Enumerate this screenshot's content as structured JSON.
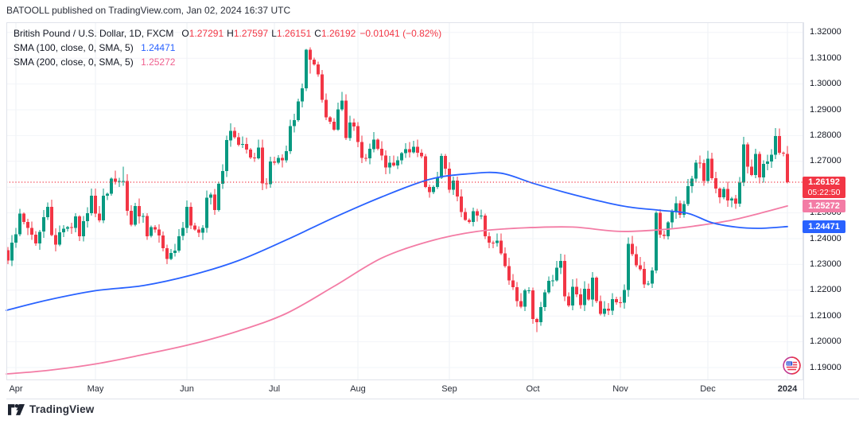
{
  "header": {
    "published": "BATOOLL published on TradingView.com, Jan 02, 2024 16:37 UTC"
  },
  "legend": {
    "symbol": "British Pound / U.S. Dollar, 1D, FXCM",
    "ohlc_segments": [
      [
        "O",
        "1.27291"
      ],
      [
        "H",
        "1.27597"
      ],
      [
        "L",
        "1.26151"
      ],
      [
        "C",
        "1.26192"
      ]
    ],
    "change_text": "−0.01041 (−0.82%)",
    "sma100": {
      "label": "SMA (100, close, 0, SMA, 5)",
      "value": "1.24471"
    },
    "sma200": {
      "label": "SMA (200, close, 0, SMA, 5)",
      "value": "1.25272"
    }
  },
  "price_axis": {
    "ticks": [
      {
        "text": "1.32000",
        "price": 1.32
      },
      {
        "text": "1.31000",
        "price": 1.31
      },
      {
        "text": "1.30000",
        "price": 1.3
      },
      {
        "text": "1.29000",
        "price": 1.29
      },
      {
        "text": "1.28000",
        "price": 1.28
      },
      {
        "text": "1.27000",
        "price": 1.27
      },
      {
        "text": "1.26000",
        "price": 1.26
      },
      {
        "text": "1.25000",
        "price": 1.25
      },
      {
        "text": "1.24000",
        "price": 1.24
      },
      {
        "text": "1.23000",
        "price": 1.23
      },
      {
        "text": "1.22000",
        "price": 1.22
      },
      {
        "text": "1.21000",
        "price": 1.21
      },
      {
        "text": "1.20000",
        "price": 1.2
      },
      {
        "text": "1.19000",
        "price": 1.19
      }
    ],
    "last_tag": {
      "price_text": "1.26192",
      "countdown": "05:22:50"
    },
    "sma200_tag": "1.25272",
    "sma100_tag": "1.24471"
  },
  "time_axis": {
    "months": [
      {
        "text": "Apr",
        "index": 2
      },
      {
        "text": "May",
        "index": 22
      },
      {
        "text": "Jun",
        "index": 45
      },
      {
        "text": "Jul",
        "index": 67
      },
      {
        "text": "Aug",
        "index": 88
      },
      {
        "text": "Sep",
        "index": 111
      },
      {
        "text": "Oct",
        "index": 132
      },
      {
        "text": "Nov",
        "index": 154
      },
      {
        "text": "Dec",
        "index": 176
      },
      {
        "text": "2024",
        "index": 196,
        "bold": true
      }
    ]
  },
  "footer": {
    "brand": "TradingView"
  },
  "colors": {
    "up": "#089981",
    "down": "#f23645",
    "sma100": "#2962ff",
    "sma200": "#f37ca5",
    "last_price": "#f23645",
    "grid_v": "#edf0f4",
    "grid_h": "#f2f4f8",
    "border": "#e0e3eb"
  },
  "chart_data": {
    "type": "candlestick",
    "title": "British Pound / U.S. Dollar, 1D, FXCM",
    "symbol": "GBPUSD",
    "timeframe": "1D",
    "exchange": "FXCM",
    "last_bar": {
      "open": 1.27291,
      "high": 1.27597,
      "low": 1.26151,
      "close": 1.26192,
      "change": -0.01041,
      "change_pct": -0.82
    },
    "y_axis": {
      "min": 1.19,
      "max": 1.32,
      "step": 0.01
    },
    "x_range": "Apr 2023 – Jan 2024",
    "last_price_line": 1.26192,
    "closes": [
      1.2315,
      1.2385,
      1.2417,
      1.2497,
      1.2465,
      1.2442,
      1.2415,
      1.2382,
      1.2427,
      1.2483,
      1.2524,
      1.2414,
      1.2377,
      1.2425,
      1.2439,
      1.2444,
      1.2441,
      1.2487,
      1.2409,
      1.2468,
      1.2499,
      1.2567,
      1.2497,
      1.2471,
      1.2566,
      1.2574,
      1.2633,
      1.262,
      1.2623,
      1.2624,
      1.2508,
      1.2454,
      1.2527,
      1.2486,
      1.2488,
      1.241,
      1.2445,
      1.2436,
      1.2412,
      1.2363,
      1.2321,
      1.2345,
      1.2354,
      1.241,
      1.2441,
      1.2523,
      1.2451,
      1.2435,
      1.2423,
      1.2441,
      1.2559,
      1.2572,
      1.2511,
      1.2613,
      1.2662,
      1.2782,
      1.2818,
      1.2794,
      1.2764,
      1.2768,
      1.2746,
      1.2715,
      1.2712,
      1.2753,
      1.2614,
      1.2612,
      1.27,
      1.2695,
      1.2714,
      1.2704,
      1.274,
      1.2837,
      1.286,
      1.2932,
      1.2983,
      1.3133,
      1.3094,
      1.3076,
      1.3037,
      1.2938,
      1.287,
      1.2854,
      1.2823,
      1.2901,
      1.2936,
      1.2791,
      1.2851,
      1.2836,
      1.2775,
      1.2713,
      1.2711,
      1.2748,
      1.2784,
      1.2749,
      1.2722,
      1.2676,
      1.2694,
      1.2684,
      1.2704,
      1.2732,
      1.2747,
      1.2735,
      1.2757,
      1.2734,
      1.272,
      1.26,
      1.258,
      1.26,
      1.2636,
      1.2721,
      1.2672,
      1.259,
      1.2626,
      1.2564,
      1.2504,
      1.2473,
      1.2464,
      1.2507,
      1.2489,
      1.249,
      1.2409,
      1.2384,
      1.2383,
      1.2392,
      1.2343,
      1.2294,
      1.2238,
      1.2212,
      1.2157,
      1.2136,
      1.2199,
      1.22,
      1.2088,
      1.2076,
      1.2135,
      1.2192,
      1.2237,
      1.2238,
      1.2287,
      1.2314,
      1.2177,
      1.2141,
      1.2214,
      1.2184,
      1.2143,
      1.2205,
      1.2164,
      1.2248,
      1.2157,
      1.2108,
      1.2128,
      1.2121,
      1.2165,
      1.2153,
      1.2151,
      1.2201,
      1.238,
      1.234,
      1.2297,
      1.2282,
      1.2222,
      1.2225,
      1.2277,
      1.25,
      1.2415,
      1.241,
      1.2463,
      1.2503,
      1.2538,
      1.2492,
      1.2535,
      1.2604,
      1.2633,
      1.2694,
      1.2693,
      1.2624,
      1.271,
      1.2634,
      1.2594,
      1.2561,
      1.2593,
      1.2549,
      1.2556,
      1.2536,
      1.2618,
      1.2766,
      1.268,
      1.2647,
      1.2729,
      1.2637,
      1.269,
      1.27,
      1.2725,
      1.2798,
      1.2733,
      1.2731,
      1.26192
    ],
    "overrides": {
      "0": {
        "o": 1.2355,
        "h": 1.2368,
        "l": 1.2301
      },
      "29": {
        "h": 1.268
      },
      "56": {
        "h": 1.2848
      },
      "75": {
        "h": 1.3136
      },
      "76": {
        "h": 1.3142,
        "l": 1.304
      },
      "84": {
        "h": 1.297
      },
      "133": {
        "h": 1.2093,
        "l": 1.2037
      },
      "163": {
        "h": 1.2506,
        "l": 1.2266
      },
      "185": {
        "h": 1.2795
      },
      "194": {
        "h": 1.2827
      },
      "196": {
        "o": 1.27291,
        "h": 1.27597,
        "l": 1.26151,
        "c": 1.26192
      }
    },
    "series": [
      {
        "name": "SMA 100",
        "color": "#2962ff",
        "last_value": 1.24471,
        "points": [
          [
            8,
            1.2122
          ],
          [
            60,
            1.2162
          ],
          [
            120,
            1.2198
          ],
          [
            180,
            1.2218
          ],
          [
            240,
            1.2258
          ],
          [
            300,
            1.2315
          ],
          [
            360,
            1.2395
          ],
          [
            420,
            1.2482
          ],
          [
            480,
            1.2562
          ],
          [
            540,
            1.263
          ],
          [
            590,
            1.2652
          ],
          [
            630,
            1.2654
          ],
          [
            670,
            1.2615
          ],
          [
            710,
            1.258
          ],
          [
            755,
            1.2545
          ],
          [
            790,
            1.2523
          ],
          [
            830,
            1.251
          ],
          [
            865,
            1.2498
          ],
          [
            895,
            1.2462
          ],
          [
            925,
            1.2445
          ],
          [
            955,
            1.244
          ],
          [
            990,
            1.2447
          ]
        ]
      },
      {
        "name": "SMA 200",
        "color": "#f37ca5",
        "last_value": 1.25272,
        "points": [
          [
            8,
            1.1875
          ],
          [
            60,
            1.1889
          ],
          [
            120,
            1.1914
          ],
          [
            180,
            1.195
          ],
          [
            240,
            1.199
          ],
          [
            300,
            1.2042
          ],
          [
            360,
            1.211
          ],
          [
            420,
            1.2215
          ],
          [
            480,
            1.2325
          ],
          [
            540,
            1.239
          ],
          [
            600,
            1.2428
          ],
          [
            660,
            1.2442
          ],
          [
            720,
            1.2445
          ],
          [
            780,
            1.2428
          ],
          [
            840,
            1.2437
          ],
          [
            880,
            1.2452
          ],
          [
            920,
            1.2472
          ],
          [
            955,
            1.2498
          ],
          [
            990,
            1.2527
          ]
        ]
      }
    ]
  }
}
